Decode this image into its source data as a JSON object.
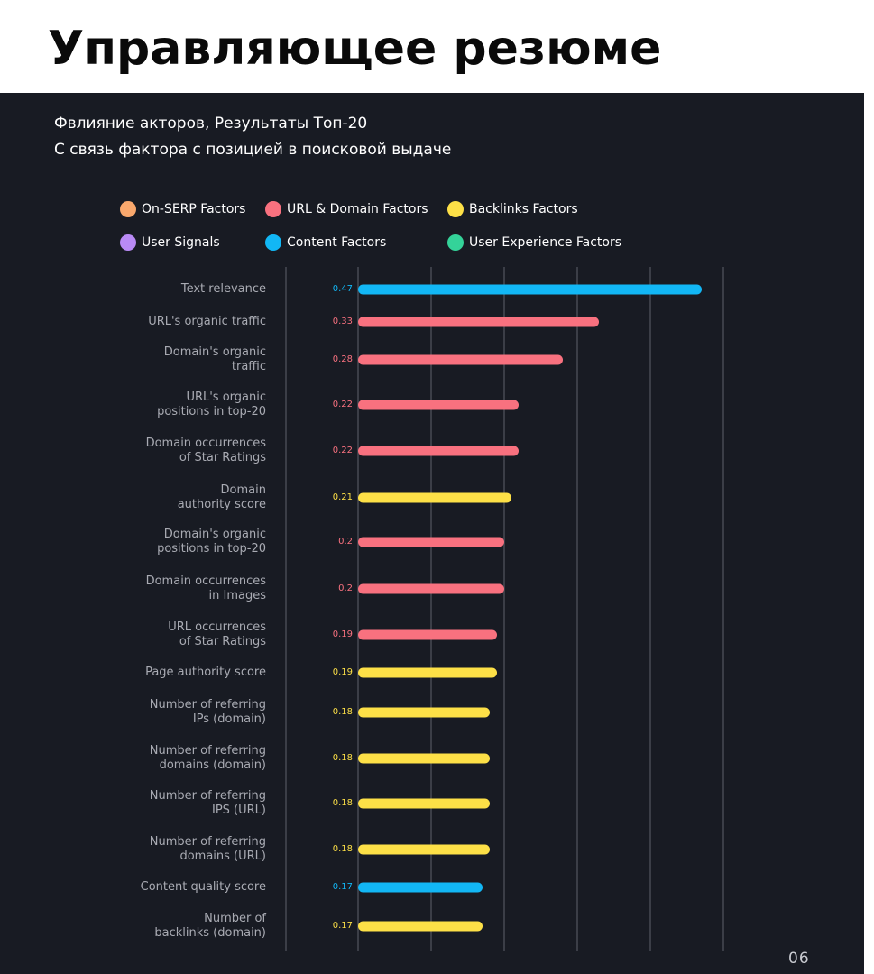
{
  "header": {
    "title": "Управляющее резюме"
  },
  "subtitle": {
    "line1": "Фвлияние акторов, Результаты Топ-20",
    "line2": "С связь фактора с позицией в поисковой выдаче"
  },
  "page_number": "06",
  "colors": {
    "on_serp": "#f9a86d",
    "url_domain": "#f8717f",
    "backlinks": "#fde047",
    "user_signals": "#b98af5",
    "content": "#12b7f5",
    "user_experience": "#34d399"
  },
  "chart_data": {
    "type": "bar",
    "orientation": "horizontal",
    "xlim": [
      0,
      0.6
    ],
    "grid": true,
    "legend_position": "top",
    "legend": [
      {
        "name": "On-SERP Factors",
        "color": "#f9a86d"
      },
      {
        "name": "URL & Domain Factors",
        "color": "#f8717f"
      },
      {
        "name": "Backlinks Factors",
        "color": "#fde047"
      },
      {
        "name": "User Signals",
        "color": "#b98af5"
      },
      {
        "name": "Content Factors",
        "color": "#12b7f5"
      },
      {
        "name": "User Experience Factors",
        "color": "#34d399"
      }
    ],
    "rows": [
      {
        "label": [
          "Text relevance"
        ],
        "value": 0.47,
        "value_label": "0.47",
        "category": "Content Factors",
        "color": "#12b7f5"
      },
      {
        "label": [
          "URL's organic traffic"
        ],
        "value": 0.33,
        "value_label": "0.33",
        "category": "URL & Domain Factors",
        "color": "#f8717f"
      },
      {
        "label": [
          "Domain's organic",
          "traffic"
        ],
        "value": 0.28,
        "value_label": "0.28",
        "category": "URL & Domain Factors",
        "color": "#f8717f"
      },
      {
        "label": [
          "URL's organic",
          "positions in top-20"
        ],
        "value": 0.22,
        "value_label": "0.22",
        "category": "URL & Domain Factors",
        "color": "#f8717f"
      },
      {
        "label": [
          "Domain occurrences",
          "of Star Ratings"
        ],
        "value": 0.22,
        "value_label": "0.22",
        "category": "URL & Domain Factors",
        "color": "#f8717f"
      },
      {
        "label": [
          "Domain",
          "authority score"
        ],
        "value": 0.21,
        "value_label": "0.21",
        "category": "Backlinks Factors",
        "color": "#fde047"
      },
      {
        "label": [
          "Domain's organic",
          "positions in top-20"
        ],
        "value": 0.2,
        "value_label": "0.2",
        "category": "URL & Domain Factors",
        "color": "#f8717f"
      },
      {
        "label": [
          "Domain occurrences",
          "in Images"
        ],
        "value": 0.2,
        "value_label": "0.2",
        "category": "URL & Domain Factors",
        "color": "#f8717f"
      },
      {
        "label": [
          "URL occurrences",
          "of Star Ratings"
        ],
        "value": 0.19,
        "value_label": "0.19",
        "category": "URL & Domain Factors",
        "color": "#f8717f"
      },
      {
        "label": [
          "Page authority score"
        ],
        "value": 0.19,
        "value_label": "0.19",
        "category": "Backlinks Factors",
        "color": "#fde047"
      },
      {
        "label": [
          "Number of referring",
          "IPs (domain)"
        ],
        "value": 0.18,
        "value_label": "0.18",
        "category": "Backlinks Factors",
        "color": "#fde047"
      },
      {
        "label": [
          "Number of referring",
          "domains (domain)"
        ],
        "value": 0.18,
        "value_label": "0.18",
        "category": "Backlinks Factors",
        "color": "#fde047"
      },
      {
        "label": [
          "Number of referring",
          "IPS (URL)"
        ],
        "value": 0.18,
        "value_label": "0.18",
        "category": "Backlinks Factors",
        "color": "#fde047"
      },
      {
        "label": [
          "Number of referring",
          "domains (URL)"
        ],
        "value": 0.18,
        "value_label": "0.18",
        "category": "Backlinks Factors",
        "color": "#fde047"
      },
      {
        "label": [
          "Content quality score"
        ],
        "value": 0.17,
        "value_label": "0.17",
        "category": "Content Factors",
        "color": "#12b7f5"
      },
      {
        "label": [
          "Number of",
          "backlinks (domain)"
        ],
        "value": 0.17,
        "value_label": "0.17",
        "category": "Backlinks Factors",
        "color": "#fde047"
      }
    ]
  }
}
